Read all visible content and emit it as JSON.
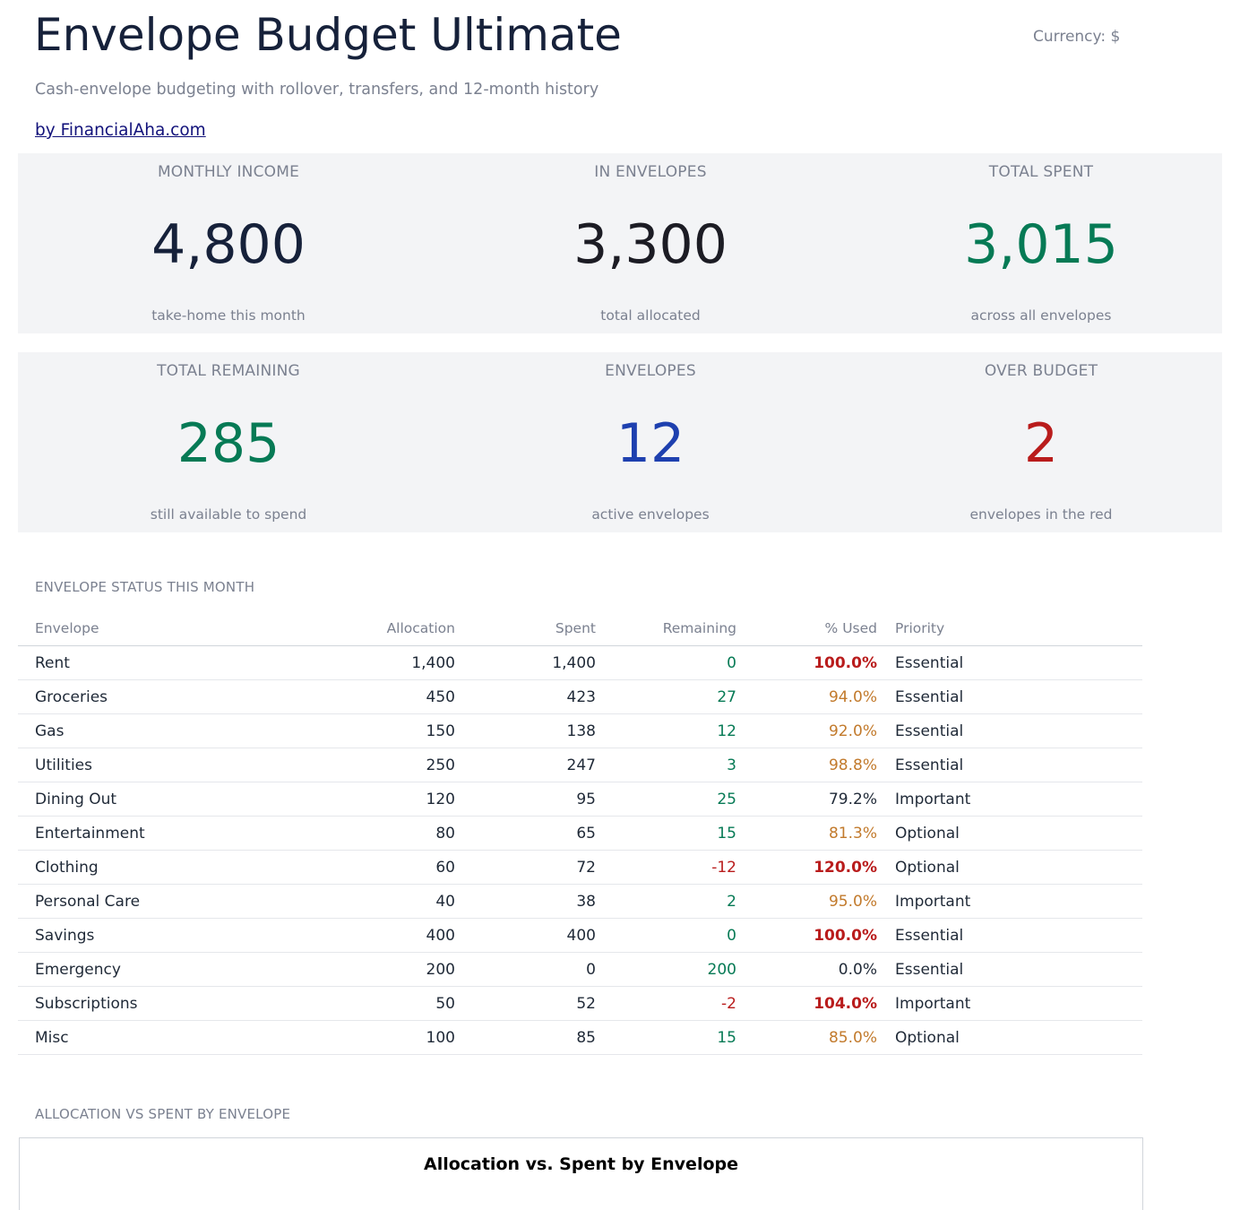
{
  "header": {
    "title": "Envelope Budget Ultimate",
    "currency_label": "Currency: $",
    "subtitle": "Cash-envelope budgeting with rollover, transfers, and 12-month history",
    "brand_link": "by FinancialAha.com"
  },
  "kpis": [
    {
      "label": "MONTHLY INCOME",
      "value": "4,800",
      "sub": "take-home this month",
      "color": "#16213a"
    },
    {
      "label": "IN ENVELOPES",
      "value": "3,300",
      "sub": "total allocated",
      "color": "#1c1c24"
    },
    {
      "label": "TOTAL SPENT",
      "value": "3,015",
      "sub": "across all envelopes",
      "color": "#067a55"
    },
    {
      "label": "TOTAL REMAINING",
      "value": "285",
      "sub": "still available to spend",
      "color": "#067a55"
    },
    {
      "label": "ENVELOPES",
      "value": "12",
      "sub": "active envelopes",
      "color": "#1e40af"
    },
    {
      "label": "OVER BUDGET",
      "value": "2",
      "sub": "envelopes in the red",
      "color": "#b91c1c"
    }
  ],
  "status_section": {
    "title": "ENVELOPE STATUS THIS MONTH",
    "columns": [
      "Envelope",
      "Allocation",
      "Spent",
      "Remaining",
      "% Used",
      "Priority"
    ],
    "rows": [
      {
        "envelope": "Rent",
        "allocation": "1,400",
        "spent": "1,400",
        "remaining": "0",
        "used": "100.0%",
        "priority": "Essential",
        "remaining_status": "ok",
        "used_status": "over"
      },
      {
        "envelope": "Groceries",
        "allocation": "450",
        "spent": "423",
        "remaining": "27",
        "used": "94.0%",
        "priority": "Essential",
        "remaining_status": "ok",
        "used_status": "warn"
      },
      {
        "envelope": "Gas",
        "allocation": "150",
        "spent": "138",
        "remaining": "12",
        "used": "92.0%",
        "priority": "Essential",
        "remaining_status": "ok",
        "used_status": "warn"
      },
      {
        "envelope": "Utilities",
        "allocation": "250",
        "spent": "247",
        "remaining": "3",
        "used": "98.8%",
        "priority": "Essential",
        "remaining_status": "ok",
        "used_status": "warn"
      },
      {
        "envelope": "Dining Out",
        "allocation": "120",
        "spent": "95",
        "remaining": "25",
        "used": "79.2%",
        "priority": "Important",
        "remaining_status": "ok",
        "used_status": "normal"
      },
      {
        "envelope": "Entertainment",
        "allocation": "80",
        "spent": "65",
        "remaining": "15",
        "used": "81.3%",
        "priority": "Optional",
        "remaining_status": "ok",
        "used_status": "warn"
      },
      {
        "envelope": "Clothing",
        "allocation": "60",
        "spent": "72",
        "remaining": "-12",
        "used": "120.0%",
        "priority": "Optional",
        "remaining_status": "neg",
        "used_status": "over"
      },
      {
        "envelope": "Personal Care",
        "allocation": "40",
        "spent": "38",
        "remaining": "2",
        "used": "95.0%",
        "priority": "Important",
        "remaining_status": "ok",
        "used_status": "warn"
      },
      {
        "envelope": "Savings",
        "allocation": "400",
        "spent": "400",
        "remaining": "0",
        "used": "100.0%",
        "priority": "Essential",
        "remaining_status": "ok",
        "used_status": "over"
      },
      {
        "envelope": "Emergency",
        "allocation": "200",
        "spent": "0",
        "remaining": "200",
        "used": "0.0%",
        "priority": "Essential",
        "remaining_status": "ok",
        "used_status": "normal"
      },
      {
        "envelope": "Subscriptions",
        "allocation": "50",
        "spent": "52",
        "remaining": "-2",
        "used": "104.0%",
        "priority": "Important",
        "remaining_status": "neg",
        "used_status": "over"
      },
      {
        "envelope": "Misc",
        "allocation": "100",
        "spent": "85",
        "remaining": "15",
        "used": "85.0%",
        "priority": "Optional",
        "remaining_status": "ok",
        "used_status": "warn"
      }
    ]
  },
  "chart_section": {
    "title": "ALLOCATION VS SPENT BY ENVELOPE",
    "chart_title": "Allocation vs. Spent by Envelope"
  },
  "colors": {
    "positive": "#067a55",
    "negative": "#b91c1c",
    "warning": "#c27a2c",
    "normal": "#1f2937"
  }
}
